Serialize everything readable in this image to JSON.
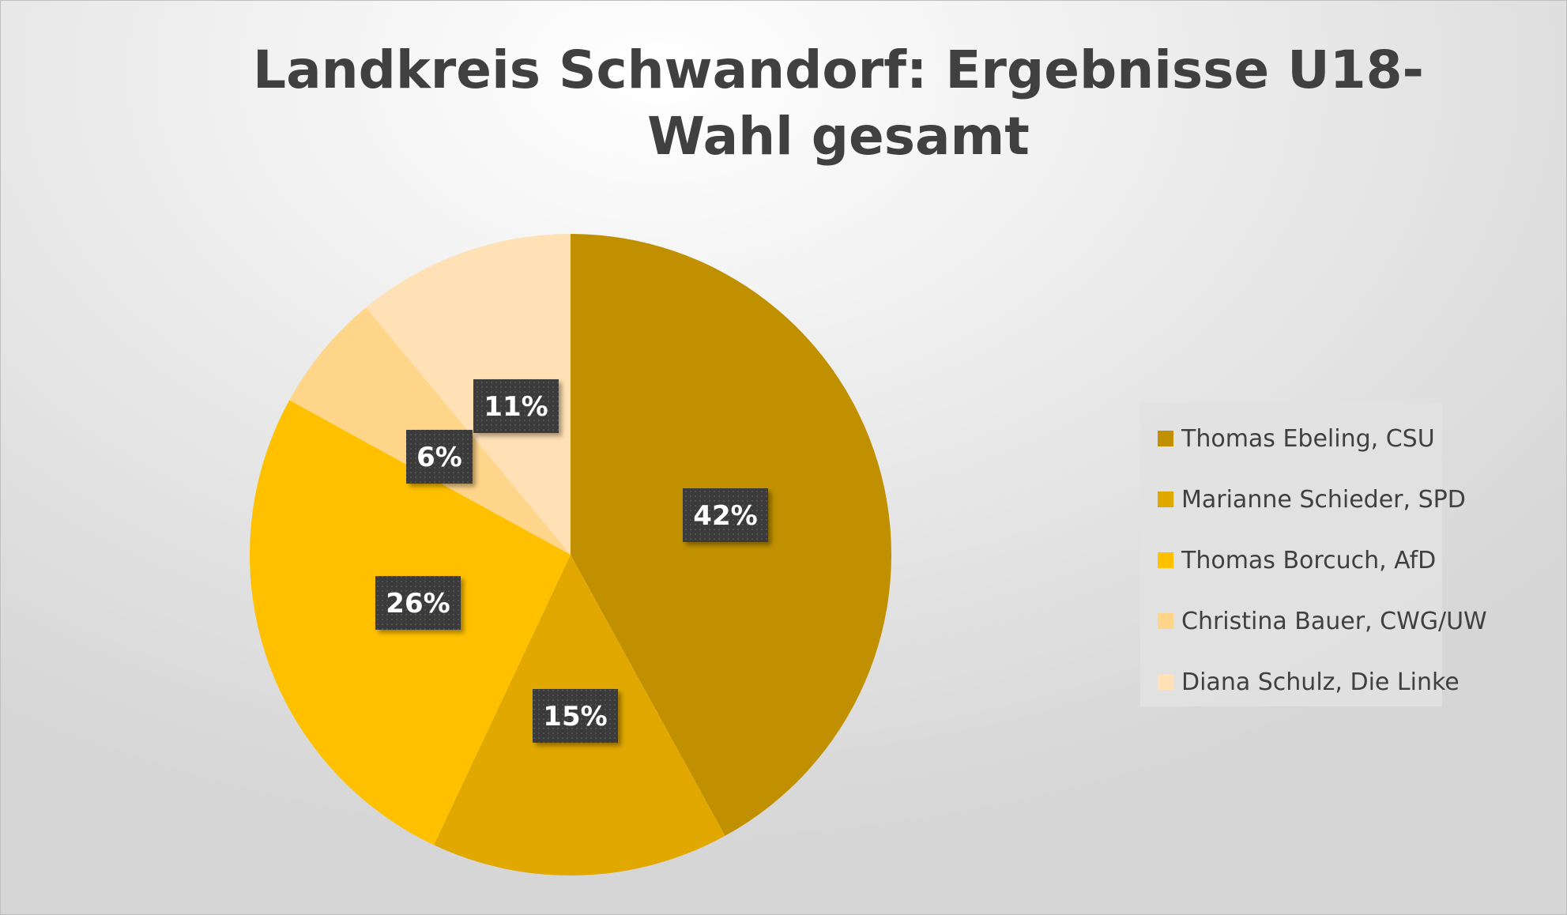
{
  "chart_data": {
    "type": "pie",
    "title": "Landkreis Schwandorf: Ergebnisse U18-Wahl gesamt",
    "categories": [
      "Thomas Ebeling, CSU",
      "Marianne Schieder, SPD",
      "Thomas Borcuch, AfD",
      "Christina Bauer, CWG/UW",
      "Diana Schulz, Die Linke"
    ],
    "values": [
      42,
      15,
      26,
      6,
      11
    ],
    "data_labels": [
      "42%",
      "15%",
      "26%",
      "6%",
      "11%"
    ],
    "colors": [
      "#c09000",
      "#e0a800",
      "#ffc000",
      "#ffd58a",
      "#ffe1b5"
    ],
    "legend_position": "right"
  }
}
